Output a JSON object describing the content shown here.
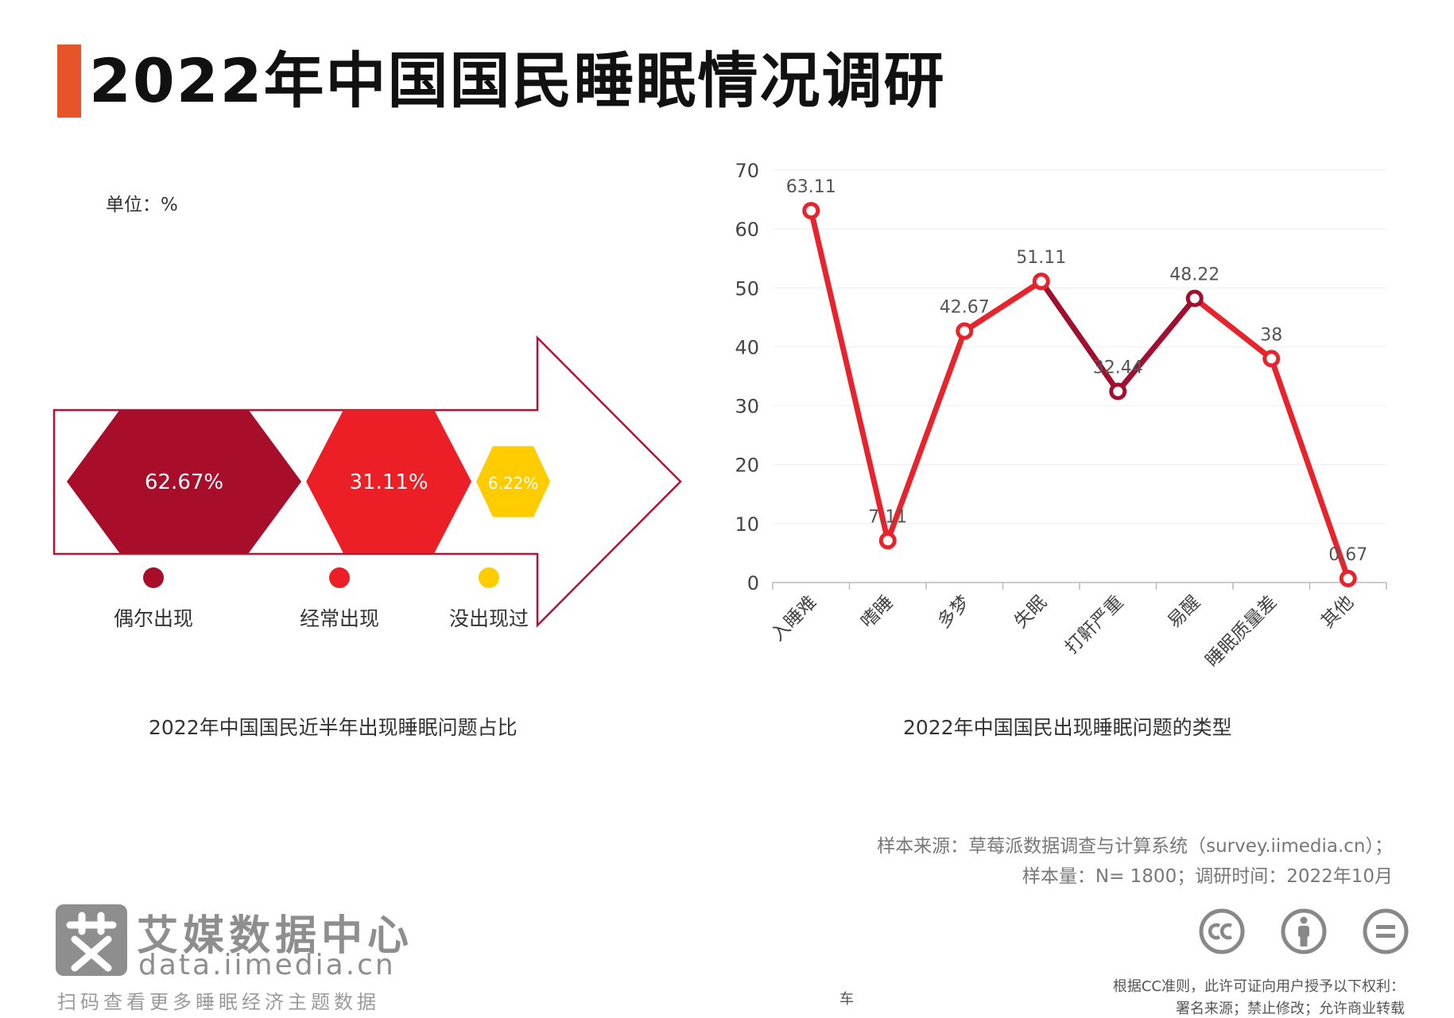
{
  "header": {
    "title": "2022年中国国民睡眠情况调研"
  },
  "left_panel": {
    "unit_label": "单位：%",
    "caption": "2022年中国国民近半年出现睡眠问题占比"
  },
  "right_panel": {
    "caption": "2022年中国国民出现睡眠问题的类型"
  },
  "colors": {
    "accent": "#e8542a",
    "dark_red": "#a80d2a",
    "red": "#ec1f27",
    "yellow": "#ffcc00",
    "line": "#e8232c",
    "line_dark": "#a10e2e"
  },
  "chart_data": [
    {
      "type": "pie",
      "categories": [
        "偶尔出现",
        "经常出现",
        "没出现过"
      ],
      "values": [
        62.67,
        31.11,
        6.22
      ],
      "value_labels": [
        "62.67%",
        "31.11%",
        "6.22%"
      ],
      "colors": [
        "#a80d2a",
        "#ec1f27",
        "#ffcc00"
      ],
      "title": ""
    },
    {
      "type": "line",
      "categories": [
        "入睡难",
        "嗜睡",
        "多梦",
        "失眠",
        "打鼾严重",
        "易醒",
        "睡眠质量差",
        "其他"
      ],
      "values": [
        63.11,
        7.11,
        42.67,
        51.11,
        32.44,
        48.22,
        38,
        0.67
      ],
      "value_labels": [
        "63.11",
        "7.11",
        "42.67",
        "51.11",
        "32.44",
        "48.22",
        "38",
        "0.67"
      ],
      "yticks": [
        "0",
        "10",
        "20",
        "30",
        "40",
        "50",
        "60",
        "70"
      ],
      "ylim": [
        0,
        70
      ],
      "grid": true,
      "title": ""
    }
  ],
  "footer": {
    "source_line1": "样本来源：草莓派数据调查与计算系统（survey.iimedia.cn）；",
    "source_line2": "样本量：N= 1800；调研时间：2022年10月",
    "logo_name": "艾媒数据中心",
    "logo_url": "data.iimedia.cn",
    "logo_slogan": "扫码查看更多睡眠经济主题数据",
    "center_mark": "车",
    "license_line1": "根据CC准则，此许可证向用户授予以下权利：",
    "license_line2": "署名来源；禁止修改；允许商业转载",
    "icons": [
      "cc-icon",
      "attribution-icon",
      "no-derivatives-icon"
    ]
  }
}
